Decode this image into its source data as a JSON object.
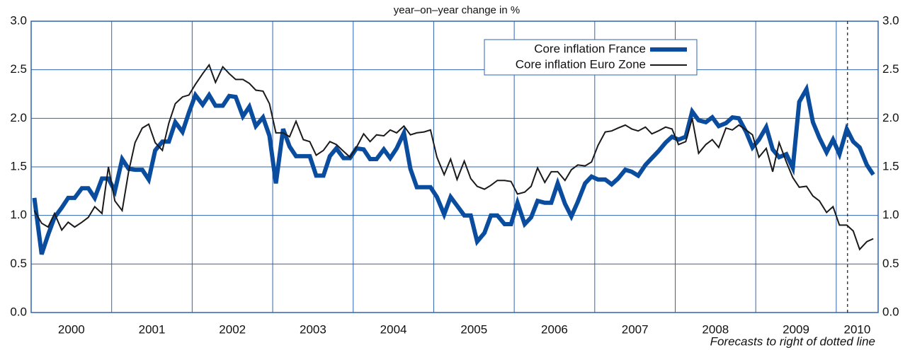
{
  "chart_data": {
    "type": "line",
    "subtitle": "year–on–year change in %",
    "annotation": "Forecasts to right of dotted line",
    "forecast_marker": 2010.14,
    "x": [
      2000.04,
      2000.13,
      2000.21,
      2000.29,
      2000.38,
      2000.46,
      2000.54,
      2000.63,
      2000.71,
      2000.79,
      2000.88,
      2000.96,
      2001.04,
      2001.13,
      2001.21,
      2001.29,
      2001.38,
      2001.46,
      2001.54,
      2001.63,
      2001.71,
      2001.79,
      2001.88,
      2001.96,
      2002.04,
      2002.13,
      2002.21,
      2002.29,
      2002.38,
      2002.46,
      2002.54,
      2002.63,
      2002.71,
      2002.79,
      2002.88,
      2002.96,
      2003.04,
      2003.13,
      2003.21,
      2003.29,
      2003.38,
      2003.46,
      2003.54,
      2003.63,
      2003.71,
      2003.79,
      2003.88,
      2003.96,
      2004.04,
      2004.13,
      2004.21,
      2004.29,
      2004.38,
      2004.46,
      2004.54,
      2004.63,
      2004.71,
      2004.79,
      2004.88,
      2004.96,
      2005.04,
      2005.13,
      2005.21,
      2005.29,
      2005.38,
      2005.46,
      2005.54,
      2005.63,
      2005.71,
      2005.79,
      2005.88,
      2005.96,
      2006.04,
      2006.13,
      2006.21,
      2006.29,
      2006.38,
      2006.46,
      2006.54,
      2006.63,
      2006.71,
      2006.79,
      2006.88,
      2006.96,
      2007.04,
      2007.13,
      2007.21,
      2007.29,
      2007.38,
      2007.46,
      2007.54,
      2007.63,
      2007.71,
      2007.79,
      2007.88,
      2007.96,
      2008.04,
      2008.13,
      2008.21,
      2008.29,
      2008.38,
      2008.46,
      2008.54,
      2008.63,
      2008.71,
      2008.79,
      2008.88,
      2008.96,
      2009.04,
      2009.13,
      2009.21,
      2009.29,
      2009.38,
      2009.46,
      2009.54,
      2009.63,
      2009.71,
      2009.79,
      2009.88,
      2009.96,
      2010.04,
      2010.13,
      2010.21,
      2010.29,
      2010.38,
      2010.46
    ],
    "series": [
      {
        "name": "Core inflation France",
        "color": "#0a4c9e",
        "width": 6,
        "values": [
          1.18,
          0.6,
          0.8,
          0.98,
          1.08,
          1.18,
          1.18,
          1.28,
          1.28,
          1.18,
          1.38,
          1.38,
          1.25,
          1.58,
          1.48,
          1.47,
          1.47,
          1.37,
          1.67,
          1.76,
          1.76,
          1.96,
          1.86,
          2.06,
          2.24,
          2.14,
          2.24,
          2.13,
          2.13,
          2.23,
          2.22,
          2.02,
          2.12,
          1.92,
          2.01,
          1.82,
          1.33,
          1.89,
          1.71,
          1.61,
          1.61,
          1.61,
          1.41,
          1.41,
          1.61,
          1.69,
          1.59,
          1.59,
          1.69,
          1.68,
          1.58,
          1.58,
          1.68,
          1.59,
          1.69,
          1.85,
          1.48,
          1.29,
          1.29,
          1.29,
          1.19,
          1.01,
          1.19,
          1.1,
          1.0,
          1.0,
          0.73,
          0.82,
          1.0,
          1.0,
          0.91,
          0.91,
          1.13,
          0.91,
          0.98,
          1.15,
          1.13,
          1.13,
          1.33,
          1.12,
          0.99,
          1.14,
          1.33,
          1.4,
          1.37,
          1.37,
          1.32,
          1.38,
          1.47,
          1.45,
          1.41,
          1.52,
          1.59,
          1.66,
          1.75,
          1.81,
          1.78,
          1.81,
          2.07,
          1.98,
          1.96,
          2.01,
          1.92,
          1.95,
          2.01,
          2.0,
          1.86,
          1.7,
          1.78,
          1.91,
          1.68,
          1.6,
          1.63,
          1.49,
          2.17,
          2.3,
          1.96,
          1.8,
          1.65,
          1.78,
          1.63,
          1.89,
          1.76,
          1.7,
          1.52,
          1.42
        ]
      },
      {
        "name": "Core inflation Euro Zone",
        "color": "#1a1a1a",
        "width": 2,
        "values": [
          1.05,
          0.92,
          0.88,
          1.02,
          0.85,
          0.93,
          0.88,
          0.93,
          0.98,
          1.09,
          1.02,
          1.5,
          1.15,
          1.05,
          1.45,
          1.75,
          1.9,
          1.94,
          1.75,
          1.67,
          1.95,
          2.15,
          2.22,
          2.24,
          2.35,
          2.46,
          2.55,
          2.37,
          2.53,
          2.46,
          2.4,
          2.4,
          2.36,
          2.29,
          2.28,
          2.15,
          1.85,
          1.85,
          1.81,
          1.97,
          1.78,
          1.76,
          1.62,
          1.67,
          1.76,
          1.73,
          1.66,
          1.6,
          1.7,
          1.84,
          1.76,
          1.83,
          1.82,
          1.88,
          1.85,
          1.92,
          1.83,
          1.85,
          1.86,
          1.88,
          1.6,
          1.42,
          1.58,
          1.37,
          1.56,
          1.38,
          1.3,
          1.27,
          1.31,
          1.36,
          1.36,
          1.35,
          1.22,
          1.24,
          1.3,
          1.49,
          1.34,
          1.45,
          1.45,
          1.36,
          1.47,
          1.52,
          1.51,
          1.55,
          1.72,
          1.86,
          1.87,
          1.9,
          1.93,
          1.89,
          1.87,
          1.91,
          1.84,
          1.87,
          1.91,
          1.89,
          1.73,
          1.76,
          2.0,
          1.64,
          1.73,
          1.78,
          1.7,
          1.9,
          1.88,
          1.93,
          1.88,
          1.83,
          1.6,
          1.69,
          1.45,
          1.75,
          1.55,
          1.39,
          1.29,
          1.3,
          1.2,
          1.15,
          1.03,
          1.09,
          0.9,
          0.9,
          0.84,
          0.65,
          0.73,
          0.76
        ]
      }
    ],
    "xlim": [
      2000,
      2010.52
    ],
    "xticks": [
      {
        "value": 2000,
        "label": "2000"
      },
      {
        "value": 2001,
        "label": "2001"
      },
      {
        "value": 2002,
        "label": "2002"
      },
      {
        "value": 2003,
        "label": "2003"
      },
      {
        "value": 2004,
        "label": "2004"
      },
      {
        "value": 2005,
        "label": "2005"
      },
      {
        "value": 2006,
        "label": "2006"
      },
      {
        "value": 2007,
        "label": "2007"
      },
      {
        "value": 2008,
        "label": "2008"
      },
      {
        "value": 2009,
        "label": "2009"
      },
      {
        "value": 2010,
        "label": "2010"
      }
    ],
    "ylim": [
      0,
      3
    ],
    "yticks": [
      {
        "value": 0,
        "label": "0.0"
      },
      {
        "value": 0.5,
        "label": "0.5"
      },
      {
        "value": 1,
        "label": "1.0"
      },
      {
        "value": 1.5,
        "label": "1.5"
      },
      {
        "value": 2,
        "label": "2.0"
      },
      {
        "value": 2.5,
        "label": "2.5"
      },
      {
        "value": 3,
        "label": "3.0"
      }
    ],
    "grid": true,
    "grid_color": "#2f64b0",
    "legend": "top"
  }
}
